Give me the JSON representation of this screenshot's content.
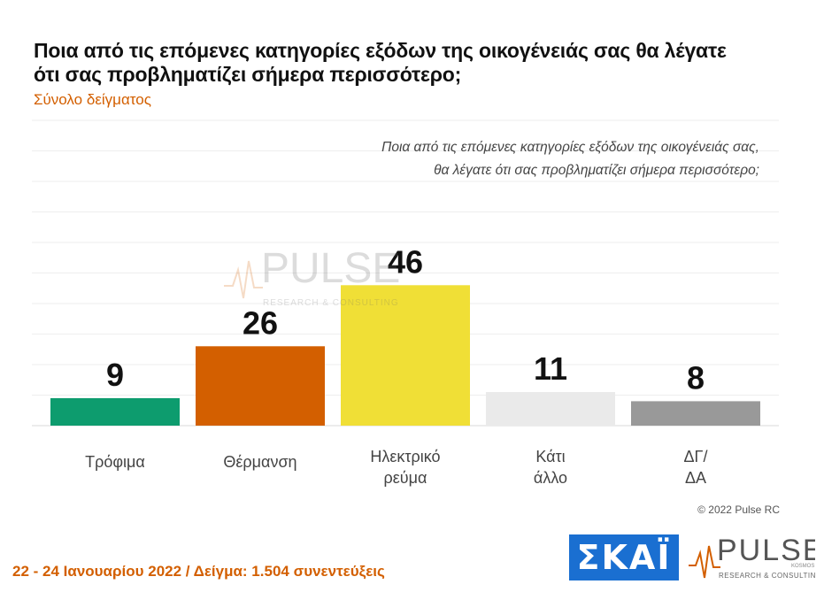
{
  "title": "Ποια από τις επόμενες κατηγορίες εξόδων της οικογένειάς σας θα λέγατε ότι σας προβληματίζει σήμερα περισσότερο;",
  "subtitle": "Σύνολο δείγματος",
  "question_lines": [
    "Ποια από τις επόμενες κατηγορίες εξόδων της οικογένειάς σας,",
    "θα λέγατε ότι σας προβληματίζει σήμερα περισσότερο;"
  ],
  "copyright": "© 2022 Pulse RC",
  "footer": "22 - 24 Ιανουαρίου 2022 / Δείγμα: 1.504 συνεντεύξεις",
  "logos": {
    "skai": "ΣΚΑΪ",
    "pulse": "PULSE",
    "pulse_tag": "RESEARCH & CONSULTING",
    "pulse_sub": "KOSMOS"
  },
  "chart_data": {
    "type": "bar",
    "categories": [
      [
        "Τρόφιμα"
      ],
      [
        "Θέρμανση"
      ],
      [
        "Ηλεκτρικό",
        "ρεύμα"
      ],
      [
        "Κάτι",
        "άλλο"
      ],
      [
        "ΔΓ/",
        "ΔΑ"
      ]
    ],
    "values": [
      9,
      26,
      46,
      11,
      8
    ],
    "colors": [
      "#0d9c6e",
      "#d35f00",
      "#f0df36",
      "#eaeaea",
      "#999999"
    ],
    "ylim": [
      0,
      100
    ],
    "grid": true
  }
}
